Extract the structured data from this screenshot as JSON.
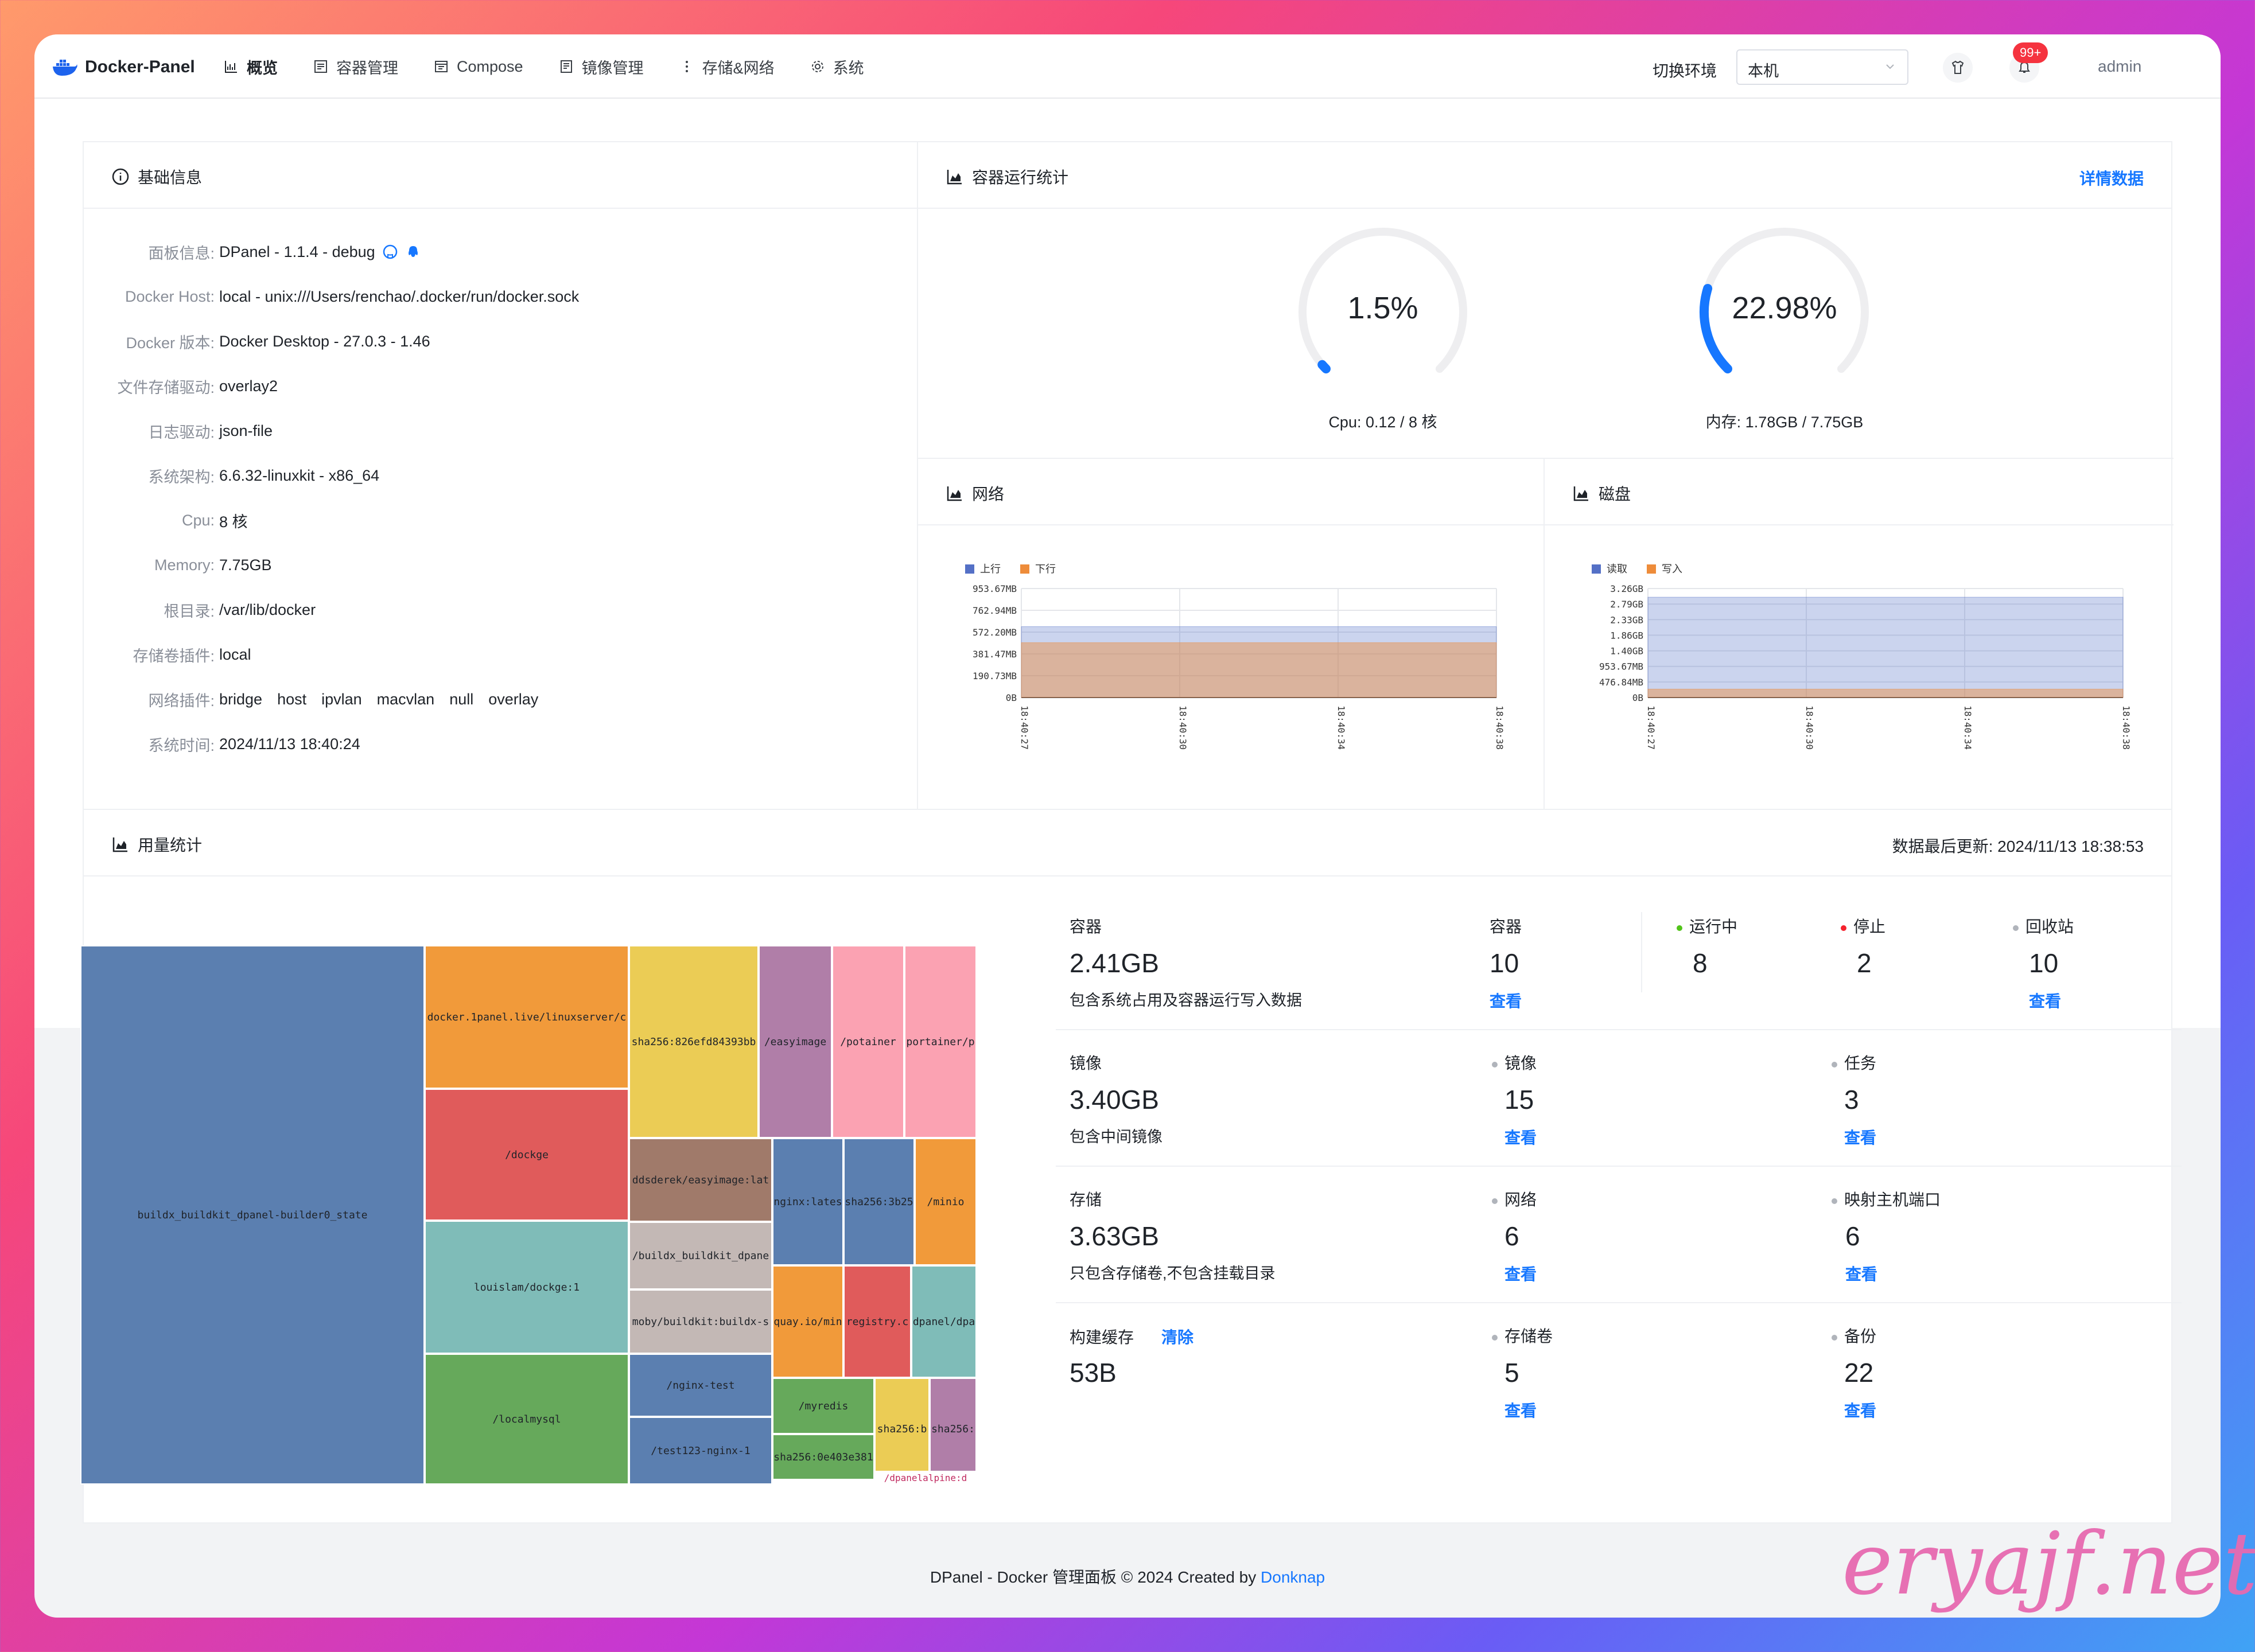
{
  "app": {
    "name": "Docker-Panel",
    "env_label": "切换环境",
    "env_value": "本机",
    "notifications_badge": "99+",
    "user": "admin"
  },
  "nav": [
    {
      "label": "概览",
      "icon": "chart-icon"
    },
    {
      "label": "容器管理",
      "icon": "container-icon"
    },
    {
      "label": "Compose",
      "icon": "compose-icon"
    },
    {
      "label": "镜像管理",
      "icon": "image-icon"
    },
    {
      "label": "存储&网络",
      "icon": "more-icon"
    },
    {
      "label": "系统",
      "icon": "gear-icon"
    }
  ],
  "basic_info": {
    "title": "基础信息",
    "rows": [
      {
        "key": "面板信息:",
        "value": "DPanel - 1.1.4 - debug"
      },
      {
        "key": "Docker Host:",
        "value": "local - unix:///Users/renchao/.docker/run/docker.sock"
      },
      {
        "key": "Docker 版本:",
        "value": "Docker Desktop - 27.0.3 - 1.46"
      },
      {
        "key": "文件存储驱动:",
        "value": "overlay2"
      },
      {
        "key": "日志驱动:",
        "value": "json-file"
      },
      {
        "key": "系统架构:",
        "value": "6.6.32-linuxkit - x86_64"
      },
      {
        "key": "Cpu:",
        "value": "8 核"
      },
      {
        "key": "Memory:",
        "value": "7.75GB"
      },
      {
        "key": "根目录:",
        "value": "/var/lib/docker"
      },
      {
        "key": "存储卷插件:",
        "value": "local"
      },
      {
        "key": "网络插件:",
        "value": [
          "bridge",
          "host",
          "ipvlan",
          "macvlan",
          "null",
          "overlay"
        ]
      },
      {
        "key": "系统时间:",
        "value": "2024/11/13 18:40:24"
      }
    ]
  },
  "runtime": {
    "title": "容器运行统计",
    "detail_link": "详情数据",
    "cpu": {
      "value": "1.5%",
      "percent": 1.5,
      "caption": "Cpu: 0.12 / 8 核"
    },
    "memory": {
      "value": "22.98%",
      "percent": 22.98,
      "caption": "内存: 1.78GB / 7.75GB"
    },
    "colors": {
      "track": "#eeeef0",
      "fill": "#1677ff"
    }
  },
  "network_panel": {
    "title": "网络"
  },
  "disk_panel": {
    "title": "磁盘"
  },
  "chart_data": [
    {
      "type": "area",
      "name": "network",
      "x": [
        "18:40:27",
        "18:40:30",
        "18:40:34",
        "18:40:38"
      ],
      "y_ticks": [
        "953.67MB",
        "762.94MB",
        "572.20MB",
        "381.47MB",
        "190.73MB",
        "0B"
      ],
      "ylim": [
        0,
        953.67
      ],
      "series": [
        {
          "name": "上行",
          "color": "#5470c6",
          "values": [
            620,
            620,
            620,
            620
          ]
        },
        {
          "name": "下行",
          "color": "#ee8c3a",
          "values": [
            480,
            480,
            480,
            480
          ]
        }
      ],
      "legend": "top-left",
      "grid": true
    },
    {
      "type": "area",
      "name": "disk",
      "x": [
        "18:40:27",
        "18:40:30",
        "18:40:34",
        "18:40:38"
      ],
      "y_ticks": [
        "3.26GB",
        "2.79GB",
        "2.33GB",
        "1.86GB",
        "1.40GB",
        "953.67MB",
        "476.84MB",
        "0B"
      ],
      "ylim": [
        0,
        3.26
      ],
      "series": [
        {
          "name": "读取",
          "color": "#5470c6",
          "values": [
            3.0,
            3.0,
            3.0,
            3.0
          ]
        },
        {
          "name": "写入",
          "color": "#ee8c3a",
          "values": [
            0.25,
            0.25,
            0.25,
            0.25
          ]
        }
      ],
      "legend": "top-left",
      "grid": true
    }
  ],
  "usage": {
    "title": "用量统计",
    "updated": "数据最后更新: 2024/11/13 18:38:53",
    "treemap_labels": {
      "buildx": "buildx_buildkit_dpanel-builder0_state",
      "linuxserver": "docker.1panel.live/linuxserver/c",
      "sha826": "sha256:826efd84393bb",
      "easyimage": "/easyimage",
      "potainer": "/potainer",
      "portainer": "portainer/p",
      "dockge": "/dockge",
      "ddsderek": "ddsderek/easyimage:lat",
      "nginxlatest": "nginx:lates",
      "sha3b25": "sha256:3b25",
      "minio": "/minio",
      "louislam": "louislam/dockge:1",
      "buildx2": "/buildx_buildkit_dpane",
      "moby": "moby/buildkit:buildx-s",
      "quay": "quay.io/min",
      "registry": "registry.c",
      "dpanel": "dpanel/dpa",
      "localmysql": "/localmysql",
      "nginxtest": "/nginx-test",
      "test123": "/test123-nginx-1",
      "myredis": "/myredis",
      "sha0e4": "sha256:0e403e381",
      "shab": "sha256:b",
      "sha2": "sha256:",
      "dpanelalpine": "/dpanelalpine:d"
    },
    "container": {
      "label": "容器",
      "size": "2.41GB",
      "desc": "包含系统占用及容器运行写入数据",
      "count_label": "容器",
      "count": "10",
      "view": "查看",
      "running_label": "运行中",
      "running": "8",
      "stopped_label": "停止",
      "stopped": "2",
      "recycle_label": "回收站",
      "recycle": "10",
      "recycle_view": "查看",
      "running_color": "#52c41a",
      "stopped_color": "#f5222d"
    },
    "image": {
      "label": "镜像",
      "size": "3.40GB",
      "desc": "包含中间镜像",
      "count_label": "镜像",
      "count": "15",
      "view": "查看",
      "task_label": "任务",
      "task": "3",
      "task_view": "查看"
    },
    "storage": {
      "label": "存储",
      "size": "3.63GB",
      "desc": "只包含存储卷,不包含挂载目录",
      "network_label": "网络",
      "network": "6",
      "view": "查看",
      "port_label": "映射主机端口",
      "port": "6",
      "port_view": "查看"
    },
    "build_cache": {
      "label": "构建缓存",
      "clear": "清除",
      "size": "53B",
      "volume_label": "存储卷",
      "volume": "5",
      "view": "查看",
      "backup_label": "备份",
      "backup": "22",
      "backup_view": "查看"
    }
  },
  "footer": {
    "text": "DPanel - Docker 管理面板 © 2024 Created by ",
    "link": "Donknap"
  },
  "watermark": "eryajf.net"
}
